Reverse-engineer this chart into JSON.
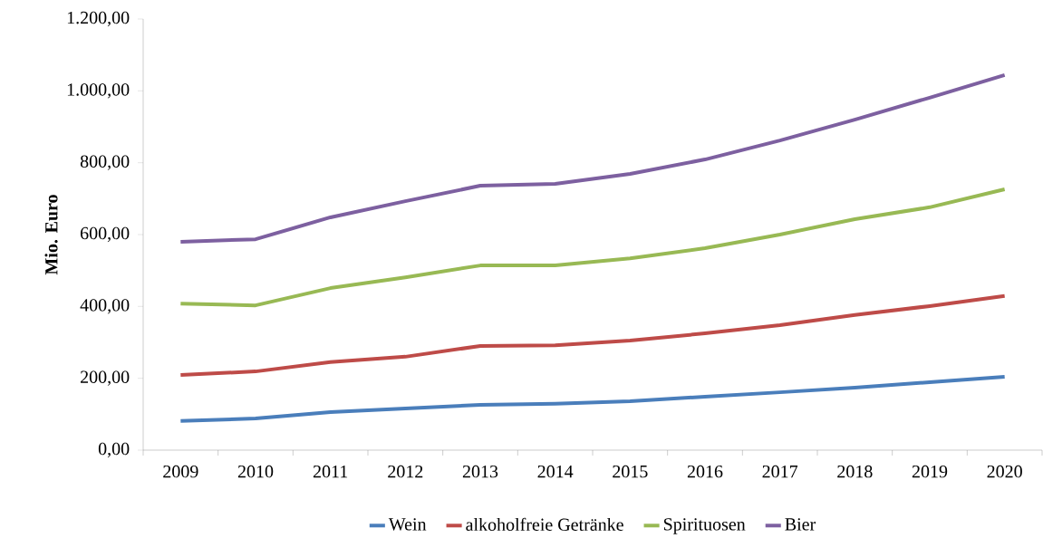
{
  "chart_data": {
    "type": "line",
    "ylabel": "Mio. Euro",
    "categories": [
      "2009",
      "2010",
      "2011",
      "2012",
      "2013",
      "2014",
      "2015",
      "2016",
      "2017",
      "2018",
      "2019",
      "2020"
    ],
    "series": [
      {
        "name": "Wein",
        "color": "#4a7ebb",
        "values": [
          81,
          88,
          106,
          116,
          126,
          129,
          136,
          149,
          161,
          174,
          189,
          204
        ]
      },
      {
        "name": "alkoholfreie Getränke",
        "color": "#be4b48",
        "values": [
          209,
          219,
          245,
          260,
          290,
          292,
          305,
          325,
          348,
          376,
          401,
          429
        ]
      },
      {
        "name": "Spirituosen",
        "color": "#98b954",
        "values": [
          408,
          403,
          451,
          481,
          514,
          514,
          534,
          562,
          600,
          643,
          676,
          726
        ]
      },
      {
        "name": "Bier",
        "color": "#7d60a0",
        "values": [
          580,
          587,
          648,
          693,
          736,
          741,
          769,
          809,
          862,
          920,
          981,
          1044
        ]
      }
    ],
    "ylim": [
      0,
      1200
    ],
    "yticks": [
      {
        "value": 0,
        "label": "0,00"
      },
      {
        "value": 200,
        "label": "200,00"
      },
      {
        "value": 400,
        "label": "400,00"
      },
      {
        "value": 600,
        "label": "600,00"
      },
      {
        "value": 800,
        "label": "800,00"
      },
      {
        "value": 1000,
        "label": "1.000,00"
      },
      {
        "value": 1200,
        "label": "1.200,00"
      }
    ],
    "grid": false,
    "legend": "bottom",
    "marker": "none",
    "line_style": "solid"
  }
}
